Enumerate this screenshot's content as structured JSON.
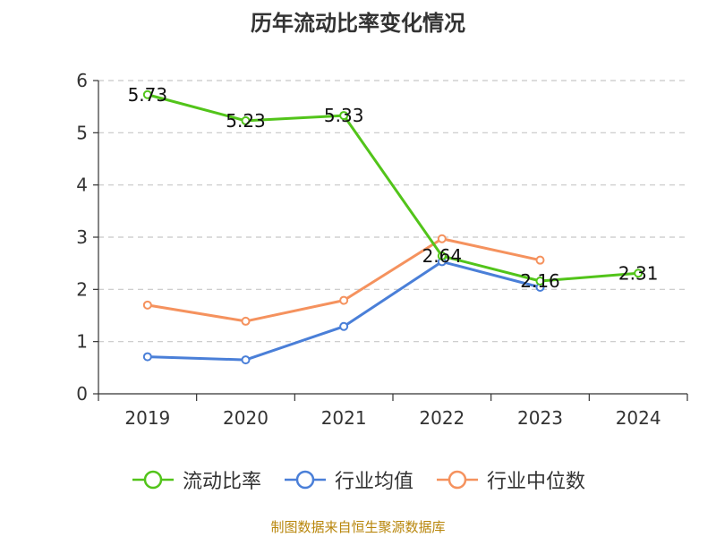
{
  "chart_data": {
    "type": "line",
    "title": "历年流动比率变化情况",
    "categories": [
      "2019",
      "2020",
      "2021",
      "2022",
      "2023",
      "2024"
    ],
    "ylim": [
      0,
      6
    ],
    "yticks": [
      0,
      1,
      2,
      3,
      4,
      5,
      6
    ],
    "grid": true,
    "legend_position": "bottom",
    "series": [
      {
        "name": "流动比率",
        "color": "#52c41a",
        "values": [
          5.73,
          5.23,
          5.33,
          2.64,
          2.16,
          2.31
        ],
        "labels": [
          "5.73",
          "5.23",
          "5.33",
          "2.64",
          "2.16",
          "2.31"
        ]
      },
      {
        "name": "行业均值",
        "color": "#4a7fd8",
        "values": [
          0.71,
          0.65,
          1.29,
          2.53,
          2.04,
          null
        ]
      },
      {
        "name": "行业中位数",
        "color": "#f5925e",
        "values": [
          1.7,
          1.39,
          1.79,
          2.97,
          2.56,
          null
        ]
      }
    ]
  },
  "source": "制图数据来自恒生聚源数据库"
}
